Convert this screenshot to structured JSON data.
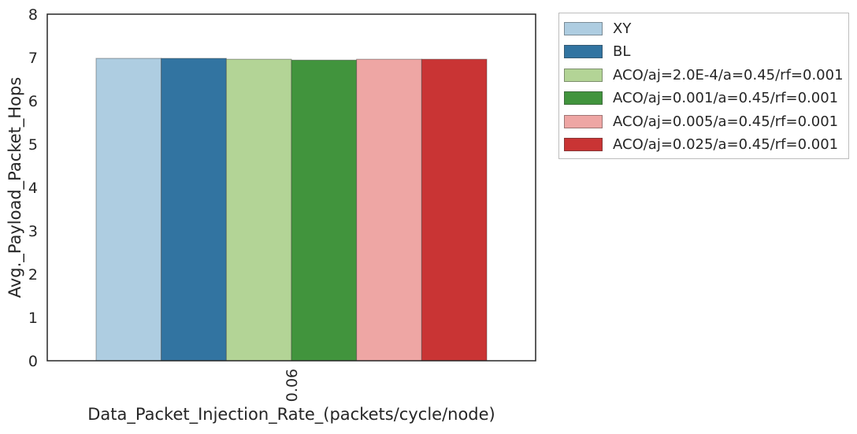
{
  "chart_data": {
    "type": "bar",
    "categories": [
      "0.06"
    ],
    "series": [
      {
        "name": "XY",
        "values": [
          6.98
        ],
        "color": "#aecde1"
      },
      {
        "name": "BL",
        "values": [
          6.98
        ],
        "color": "#3274a1"
      },
      {
        "name": "ACO/aj=2.0E-4/a=0.45/rf=0.001",
        "values": [
          6.96
        ],
        "color": "#b3d496"
      },
      {
        "name": "ACO/aj=0.001/a=0.45/rf=0.001",
        "values": [
          6.94
        ],
        "color": "#41943d"
      },
      {
        "name": "ACO/aj=0.005/a=0.45/rf=0.001",
        "values": [
          6.96
        ],
        "color": "#eea6a4"
      },
      {
        "name": "ACO/aj=0.025/a=0.45/rf=0.001",
        "values": [
          6.96
        ],
        "color": "#c93434"
      }
    ],
    "title": "",
    "xlabel": "Data_Packet_Injection_Rate_(packets/cycle/node)",
    "ylabel": "Avg._Payload_Packet_Hops",
    "ylim": [
      0,
      8
    ],
    "yticks": [
      "0",
      "1",
      "2",
      "3",
      "4",
      "5",
      "6",
      "7",
      "8"
    ],
    "grid": false,
    "legend_position": "outside-top-right"
  }
}
